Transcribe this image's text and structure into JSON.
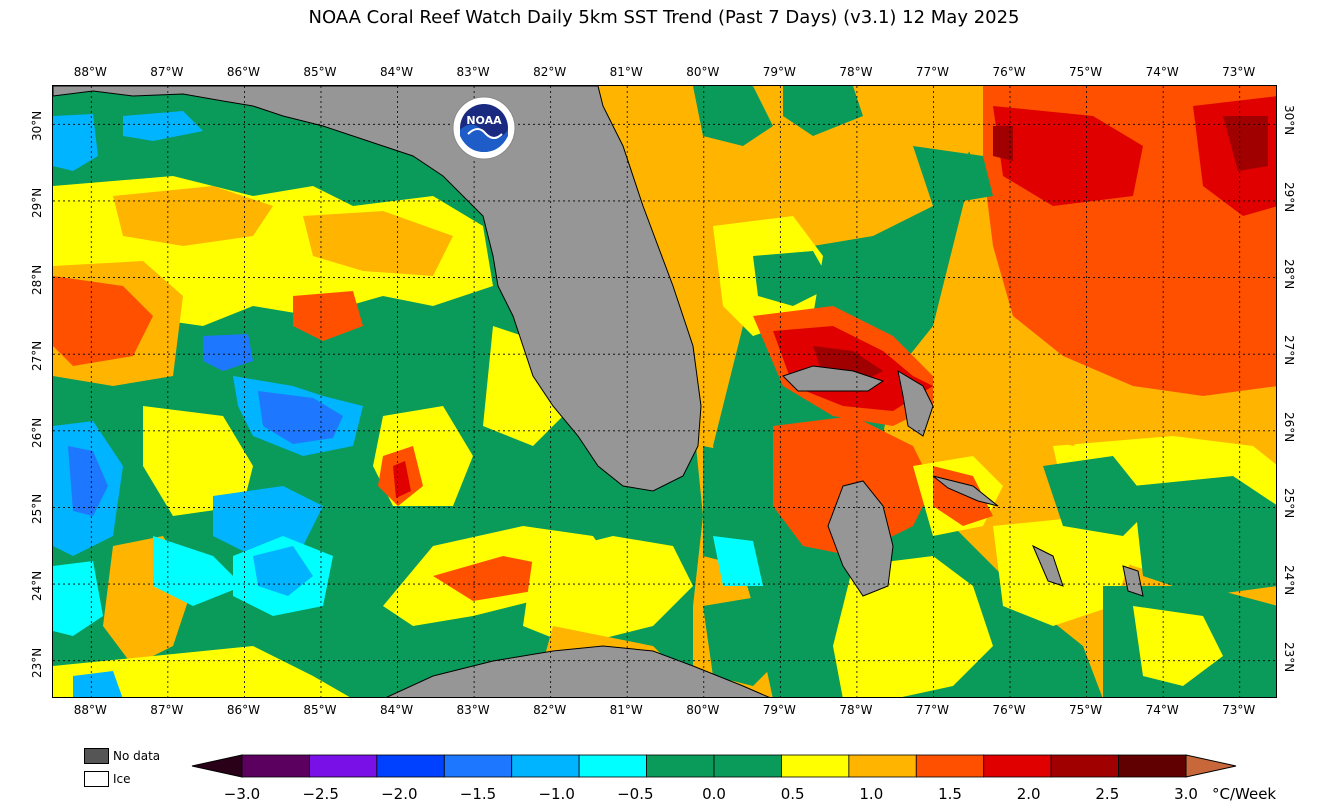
{
  "title": "NOAA Coral Reef Watch Daily 5km SST Trend (Past 7 Days)  (v3.1)   12 May 2025",
  "logo_text": "NOAA",
  "map": {
    "lon_ticks": [
      "88°W",
      "87°W",
      "86°W",
      "85°W",
      "84°W",
      "83°W",
      "82°W",
      "81°W",
      "80°W",
      "79°W",
      "78°W",
      "77°W",
      "76°W",
      "75°W",
      "74°W",
      "73°W"
    ],
    "lat_ticks": [
      "30°N",
      "29°N",
      "28°N",
      "27°N",
      "26°N",
      "25°N",
      "24°N",
      "23°N"
    ],
    "lon_range": [
      -88.5,
      -72.5
    ],
    "lat_range": [
      22.5,
      30.5
    ],
    "land_color": "#969696",
    "gridlines": "dotted"
  },
  "legend": {
    "no_data_label": "No data",
    "no_data_color": "#555555",
    "ice_label": "Ice",
    "ice_color": "#ffffff"
  },
  "colorbar": {
    "unit": "°C/Week",
    "tick_labels": [
      "−3.0",
      "−2.5",
      "−2.0",
      "−1.5",
      "−1.0",
      "−0.5",
      "0.0",
      "0.5",
      "1.0",
      "1.5",
      "2.0",
      "2.5",
      "3.0"
    ],
    "low_extend_color": "#2a0018",
    "high_extend_color": "#c8683a",
    "colors": [
      "#5c0060",
      "#7a10e8",
      "#0040ff",
      "#1e78ff",
      "#00b4ff",
      "#00ffff",
      "#0a9a5a",
      "#0a9a5a",
      "#ffff00",
      "#ffb400",
      "#ff5000",
      "#e00000",
      "#a00000",
      "#600000"
    ]
  }
}
